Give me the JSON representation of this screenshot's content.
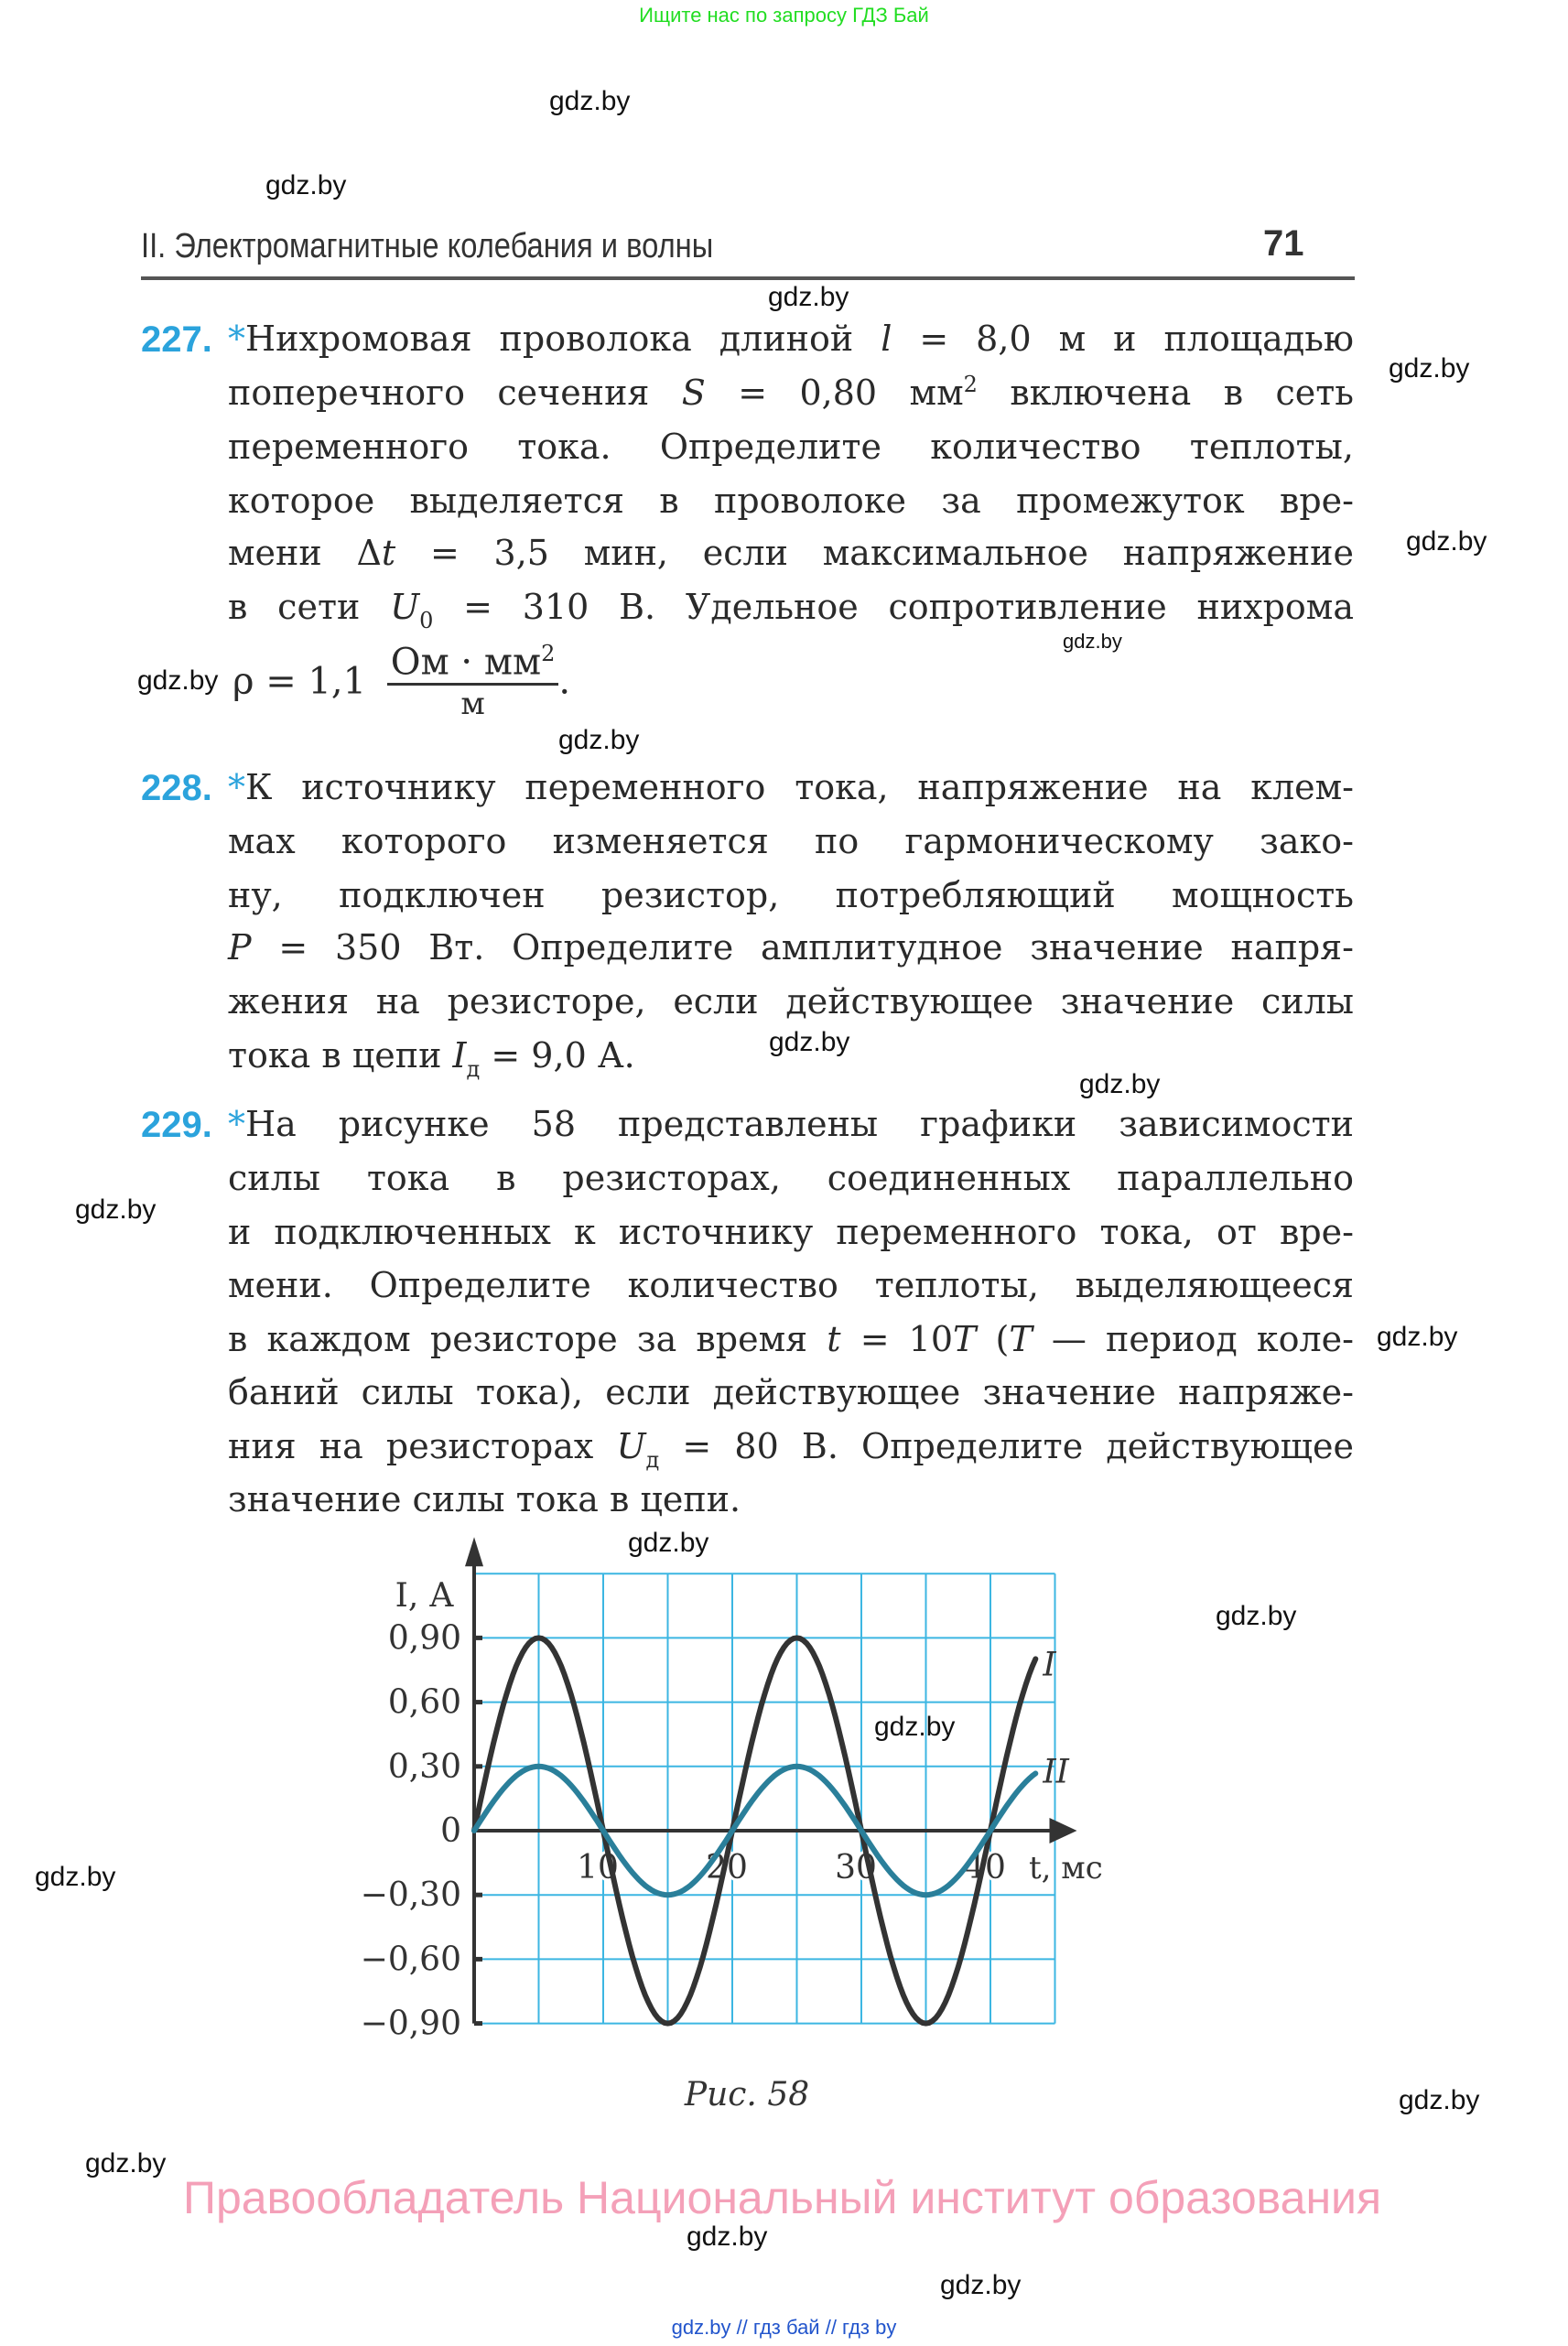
{
  "top_banner": "Ищите нас по запросу ГДЗ Бай",
  "header": {
    "running_head": "II. Электромагнитные колебания и волны",
    "page_number": "71"
  },
  "watermark": "gdz.by",
  "problems": [
    {
      "number": "227.",
      "lines": [
        [
          [
            "*",
            "star"
          ],
          [
            "Нихромовая проволока длиной ",
            ""
          ],
          [
            "l",
            "i"
          ],
          [
            " = 8,0 м и площадью",
            ""
          ]
        ],
        [
          [
            "поперечного сечения ",
            ""
          ],
          [
            "S",
            "i"
          ],
          [
            " = 0,80 мм",
            ""
          ],
          [
            "2",
            "sup"
          ],
          [
            " включена в сеть",
            ""
          ]
        ],
        [
          [
            "переменного тока. Определите количество теплоты,",
            ""
          ]
        ],
        [
          [
            "которое выделяется в проволоке за промежуток вре-",
            ""
          ]
        ],
        [
          [
            "мени Δ",
            ""
          ],
          [
            "t",
            "i"
          ],
          [
            " = 3,5 мин, если максимальное напряжение",
            ""
          ]
        ],
        [
          [
            "в сети ",
            ""
          ],
          [
            "U",
            "i"
          ],
          [
            "0",
            "sub"
          ],
          [
            " = 310 В. Удельное сопротивление нихрома",
            ""
          ]
        ]
      ],
      "formula": {
        "lhs": "ρ = 1,1",
        "numerator": "Ом · мм",
        "numerator_sup": "2",
        "denominator": "м",
        "end": "."
      }
    },
    {
      "number": "228.",
      "lines": [
        [
          [
            "*",
            "star"
          ],
          [
            "К источнику переменного тока, напряжение на клем-",
            ""
          ]
        ],
        [
          [
            "мах которого изменяется по гармоническому зако-",
            ""
          ]
        ],
        [
          [
            "ну, подключен резистор, потребляющий мощность",
            ""
          ]
        ],
        [
          [
            "P",
            "i"
          ],
          [
            " = 350 Вт. Определите амплитудное значение напря-",
            ""
          ]
        ],
        [
          [
            "жения на резисторе, если действующее значение силы",
            ""
          ]
        ],
        [
          [
            "тока в цепи ",
            ""
          ],
          [
            "I",
            "i"
          ],
          [
            "д",
            "sub"
          ],
          [
            " = 9,0 А.",
            ""
          ]
        ]
      ]
    },
    {
      "number": "229.",
      "lines": [
        [
          [
            "*",
            "star"
          ],
          [
            "На рисунке 58 представлены графики зависимости",
            ""
          ]
        ],
        [
          [
            "силы тока в резисторах, соединенных параллельно",
            ""
          ]
        ],
        [
          [
            "и подключенных к источнику переменного тока, от вре-",
            ""
          ]
        ],
        [
          [
            "мени. Определите количество теплоты, выделяющееся",
            ""
          ]
        ],
        [
          [
            "в каждом резисторе за время ",
            ""
          ],
          [
            "t",
            "i"
          ],
          [
            " = 10",
            ""
          ],
          [
            "T",
            "i"
          ],
          [
            " (",
            ""
          ],
          [
            "T",
            "i"
          ],
          [
            " — период коле-",
            ""
          ]
        ],
        [
          [
            "баний силы тока), если действующее значение напряже-",
            ""
          ]
        ],
        [
          [
            "ния на резисторах ",
            ""
          ],
          [
            "U",
            "i"
          ],
          [
            "д",
            "sub"
          ],
          [
            " = 80 В. Определите действующее",
            ""
          ]
        ],
        [
          [
            "значение силы тока в цепи.",
            ""
          ]
        ]
      ]
    }
  ],
  "chart_data": {
    "type": "line",
    "title": "",
    "xlabel": "t, мс",
    "ylabel": "I, А",
    "x_ticks": [
      "10",
      "20",
      "30",
      "40"
    ],
    "y_ticks": [
      "0,90",
      "0,60",
      "0,30",
      "0",
      "−0,30",
      "−0,60",
      "−0,90"
    ],
    "y_tick_values": [
      0.9,
      0.6,
      0.3,
      0,
      -0.3,
      -0.6,
      -0.9
    ],
    "xlim": [
      0,
      45
    ],
    "ylim": [
      -0.9,
      1.2
    ],
    "grid": true,
    "grid_step_x": 5,
    "grid_step_y": 0.3,
    "x_end": 43.5,
    "series": [
      {
        "name": "I",
        "amplitude": 0.9,
        "period": 20,
        "function": "sine",
        "color": "#333333"
      },
      {
        "name": "II",
        "amplitude": 0.3,
        "period": 20,
        "function": "sine",
        "color": "#2a7f9a"
      }
    ],
    "grid_color": "#3cb6e2"
  },
  "caption": "Рис. 58",
  "copyright": "Правообладатель Национальный институт образования",
  "footer_links": "gdz.by  //  гдз бай  //  гдз by"
}
